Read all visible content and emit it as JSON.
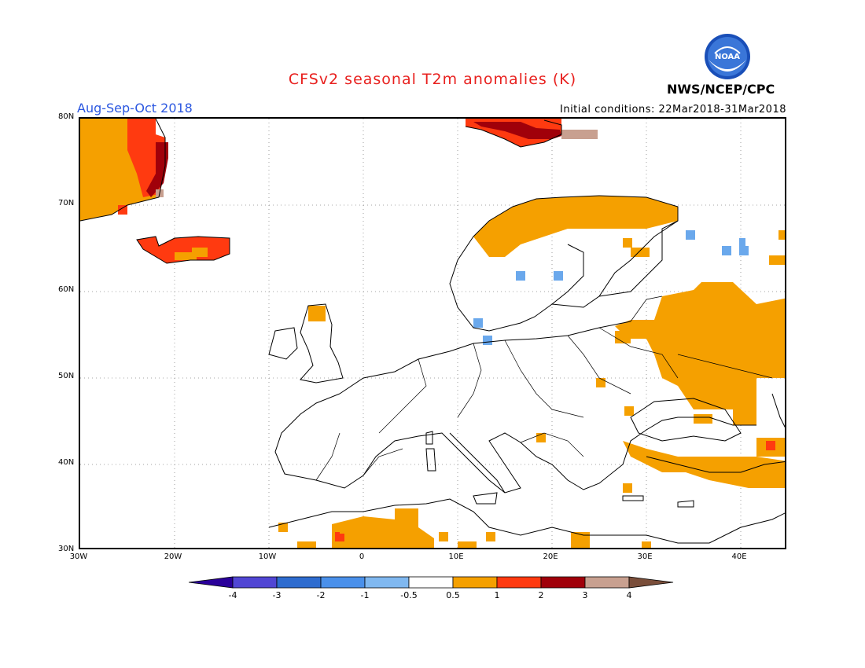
{
  "title": "CFSv2 seasonal T2m anomalies (K)",
  "subtitle": "Aug-Sep-Oct 2018",
  "initial_conditions": "Initial conditions: 22Mar2018-31Mar2018",
  "agency": "NWS/NCEP/CPC",
  "logo_text": "NOAA",
  "lat_labels": [
    "80N",
    "70N",
    "60N",
    "50N",
    "40N",
    "30N"
  ],
  "lon_labels": [
    "30W",
    "20W",
    "10W",
    "0",
    "10E",
    "20E",
    "30E",
    "40E"
  ],
  "colorbar": {
    "colors": [
      "#2a009a",
      "#5146d4",
      "#2e6ccf",
      "#4a90ea",
      "#80b8f0",
      "#ffffff",
      "#f5a000",
      "#ff3a10",
      "#a0000a",
      "#c8a090",
      "#7a4e3a"
    ],
    "labels": [
      "-4",
      "-3",
      "-2",
      "-1",
      "-0.5",
      "0.5",
      "1",
      "2",
      "3",
      "4"
    ]
  },
  "colors": {
    "title": "#e8201e",
    "subtitle": "#2b57e0",
    "anom_05_1": "#f5a000",
    "anom_1_2": "#ff3a10",
    "anom_2_3": "#a0000a",
    "anom_3_4": "#c8a090",
    "anom_neg": "#6aa8ec"
  }
}
